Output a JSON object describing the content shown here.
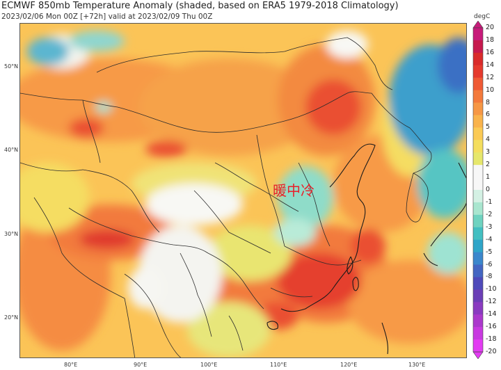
{
  "header": {
    "title": "ECMWF 850mb Temperature Anomaly (shaded, based on ERA5 1979-2018 Climatology)",
    "subtitle": "2023/02/06 Mon 00Z [+72h] valid at 2023/02/09 Thu 00Z"
  },
  "map": {
    "lat_labels": [
      "50°N",
      "40°N",
      "30°N",
      "20°N"
    ],
    "lon_labels": [
      "80°E",
      "90°E",
      "100°E",
      "110°E",
      "120°E",
      "130°E"
    ],
    "overlay_text": "暖中冷"
  },
  "colorbar": {
    "unit": "degC",
    "ticks": [
      "20",
      "18",
      "16",
      "14",
      "12",
      "10",
      "8",
      "6",
      "5",
      "4",
      "3",
      "2",
      "1",
      "0",
      "-1",
      "-2",
      "-3",
      "-4",
      "-5",
      "-6",
      "-8",
      "-10",
      "-12",
      "-14",
      "-16",
      "-18",
      "-20"
    ],
    "colors": [
      "#c71b7a",
      "#c61a4e",
      "#d92b2b",
      "#e53a2e",
      "#ef5a35",
      "#f37a3c",
      "#f69745",
      "#f9b34c",
      "#fbca55",
      "#f4de5e",
      "#e6e76c",
      "#f7f7f7",
      "#f7f7f7",
      "#d4f1e4",
      "#a9e6cf",
      "#6fd3c0",
      "#43bfc1",
      "#2fa5c8",
      "#3b87cc",
      "#4466c2",
      "#4f4aba",
      "#6b3fb6",
      "#8a3bc0",
      "#ab39cc",
      "#c83ae0",
      "#e33cf2"
    ]
  }
}
